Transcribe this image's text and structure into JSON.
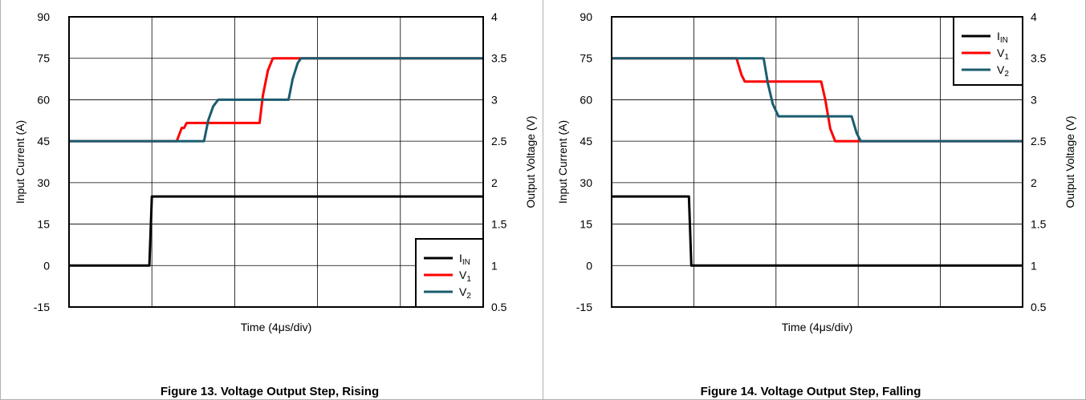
{
  "chart_data": [
    {
      "type": "line",
      "title": "Figure 13. Voltage Output Step, Rising",
      "xlabel_prefix": "Time (4",
      "xlabel_mu": "μ",
      "xlabel_suffix": "s/div)",
      "ylabel_left": "Input Current (A)",
      "ylabel_right": "Output Voltage (V)",
      "x_divisions": 5,
      "xlim": [
        0,
        5
      ],
      "ylim_left": [
        -15,
        90
      ],
      "ylim_right": [
        0.5,
        4
      ],
      "yticks_left": [
        "90",
        "75",
        "60",
        "45",
        "30",
        "15",
        "0",
        "-15"
      ],
      "yticks_right": [
        "4",
        "3.5",
        "3",
        "2.5",
        "2",
        "1.5",
        "1",
        "0.5"
      ],
      "grid": true,
      "legend_position": "bottom-right",
      "series": [
        {
          "name": "IIN",
          "name_main": "I",
          "name_sub": "IN",
          "axis": "left",
          "color": "#000000",
          "points": [
            [
              0,
              0
            ],
            [
              0.97,
              0
            ],
            [
              1.0,
              25
            ],
            [
              5,
              25
            ]
          ]
        },
        {
          "name": "V1",
          "name_main": "V",
          "name_sub": "1",
          "axis": "right",
          "color": "#ff0000",
          "points": [
            [
              0,
              2.5
            ],
            [
              1.3,
              2.5
            ],
            [
              1.36,
              2.66
            ],
            [
              1.39,
              2.66
            ],
            [
              1.42,
              2.72
            ],
            [
              1.45,
              2.72
            ],
            [
              2.3,
              2.72
            ],
            [
              2.34,
              3.05
            ],
            [
              2.4,
              3.35
            ],
            [
              2.46,
              3.5
            ],
            [
              5,
              3.5
            ]
          ]
        },
        {
          "name": "V2",
          "name_main": "V",
          "name_sub": "2",
          "axis": "right",
          "color": "#1a5c6e",
          "points": [
            [
              0,
              2.5
            ],
            [
              1.63,
              2.5
            ],
            [
              1.68,
              2.75
            ],
            [
              1.74,
              2.92
            ],
            [
              1.8,
              3.0
            ],
            [
              2.65,
              3.0
            ],
            [
              2.7,
              3.25
            ],
            [
              2.76,
              3.44
            ],
            [
              2.8,
              3.5
            ],
            [
              5,
              3.5
            ]
          ]
        }
      ]
    },
    {
      "type": "line",
      "title": "Figure 14. Voltage Output Step, Falling",
      "xlabel_prefix": "Time (4",
      "xlabel_mu": "μ",
      "xlabel_suffix": "s/div)",
      "ylabel_left": "Input Current (A)",
      "ylabel_right": "Output Voltage (V)",
      "x_divisions": 5,
      "xlim": [
        0,
        5
      ],
      "ylim_left": [
        -15,
        90
      ],
      "ylim_right": [
        0.5,
        4
      ],
      "yticks_left": [
        "90",
        "75",
        "60",
        "45",
        "30",
        "15",
        "0",
        "-15"
      ],
      "yticks_right": [
        "4",
        "3.5",
        "3",
        "2.5",
        "2",
        "1.5",
        "1",
        "0.5"
      ],
      "grid": true,
      "legend_position": "top-right",
      "series": [
        {
          "name": "IIN",
          "name_main": "I",
          "name_sub": "IN",
          "axis": "left",
          "color": "#000000",
          "points": [
            [
              0,
              25
            ],
            [
              0.94,
              25
            ],
            [
              0.97,
              0
            ],
            [
              5,
              0
            ]
          ]
        },
        {
          "name": "V1",
          "name_main": "V",
          "name_sub": "1",
          "axis": "right",
          "color": "#ff0000",
          "points": [
            [
              0,
              3.5
            ],
            [
              1.52,
              3.5
            ],
            [
              1.58,
              3.3
            ],
            [
              1.62,
              3.22
            ],
            [
              2.55,
              3.22
            ],
            [
              2.6,
              3.0
            ],
            [
              2.66,
              2.65
            ],
            [
              2.72,
              2.5
            ],
            [
              5,
              2.5
            ]
          ]
        },
        {
          "name": "V2",
          "name_main": "V",
          "name_sub": "2",
          "axis": "right",
          "color": "#1a5c6e",
          "points": [
            [
              0,
              3.5
            ],
            [
              1.85,
              3.5
            ],
            [
              1.9,
              3.2
            ],
            [
              1.96,
              2.95
            ],
            [
              2.03,
              2.8
            ],
            [
              2.92,
              2.8
            ],
            [
              2.98,
              2.6
            ],
            [
              3.03,
              2.5
            ],
            [
              5,
              2.5
            ]
          ]
        }
      ]
    }
  ]
}
